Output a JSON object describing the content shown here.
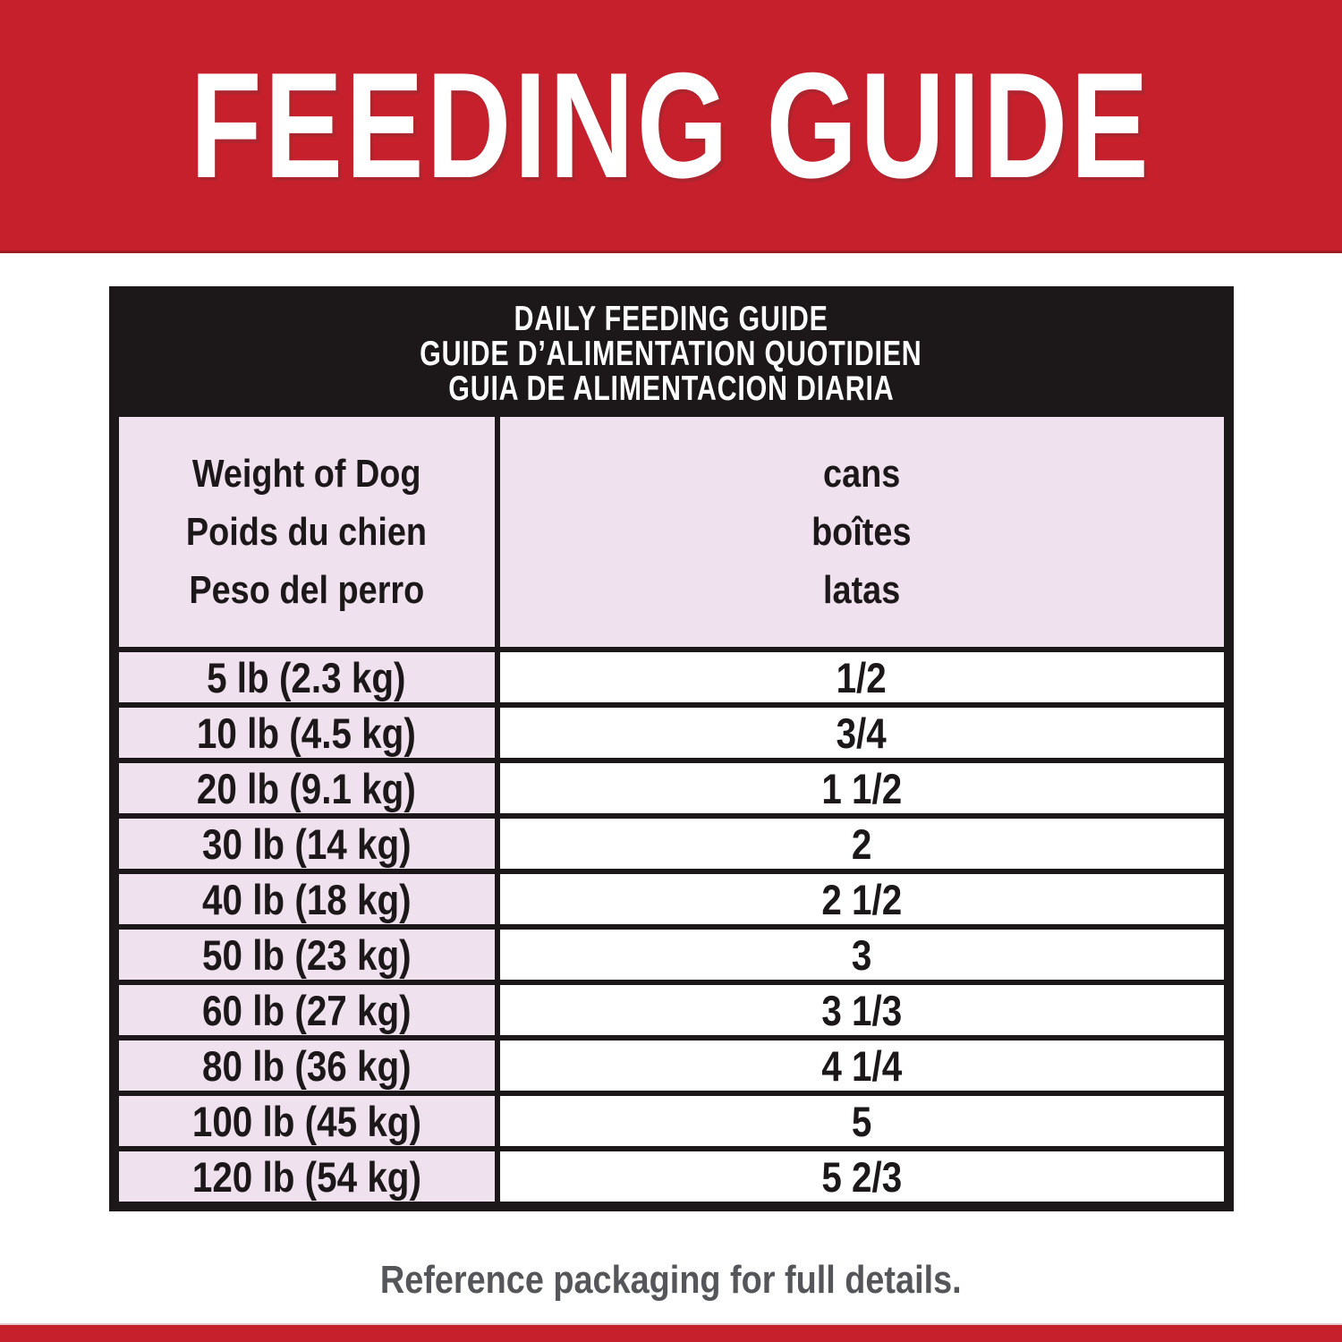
{
  "banner": {
    "title": "FEEDING GUIDE"
  },
  "table": {
    "title_lines": [
      "DAILY FEEDING GUIDE",
      "GUIDE D’ALIMENTATION QUOTIDIEN",
      "GUIA DE ALIMENTACION DIARIA"
    ],
    "columns": [
      {
        "name": "weight",
        "lines": [
          "Weight of Dog",
          "Poids du chien",
          "Peso del perro"
        ]
      },
      {
        "name": "cans",
        "lines": [
          "cans",
          "boîtes",
          "latas"
        ]
      }
    ],
    "rows": [
      {
        "weight": "5 lb (2.3 kg)",
        "cans": "1/2"
      },
      {
        "weight": "10 lb (4.5 kg)",
        "cans": "3/4"
      },
      {
        "weight": "20 lb (9.1 kg)",
        "cans": "1 1/2"
      },
      {
        "weight": "30 lb (14 kg)",
        "cans": "2"
      },
      {
        "weight": "40 lb (18 kg)",
        "cans": "2 1/2"
      },
      {
        "weight": "50 lb (23 kg)",
        "cans": "3"
      },
      {
        "weight": "60 lb (27 kg)",
        "cans": "3 1/3"
      },
      {
        "weight": "80 lb (36 kg)",
        "cans": "4 1/4"
      },
      {
        "weight": "100 lb (45 kg)",
        "cans": "5"
      },
      {
        "weight": "120 lb (54 kg)",
        "cans": "5 2/3"
      }
    ]
  },
  "footer": {
    "note": "Reference packaging for full details."
  },
  "colors": {
    "brand_red": "#C6202C",
    "row_pink": "#F0E1EF",
    "table_black": "#1C1819",
    "note_gray": "#55565A"
  }
}
